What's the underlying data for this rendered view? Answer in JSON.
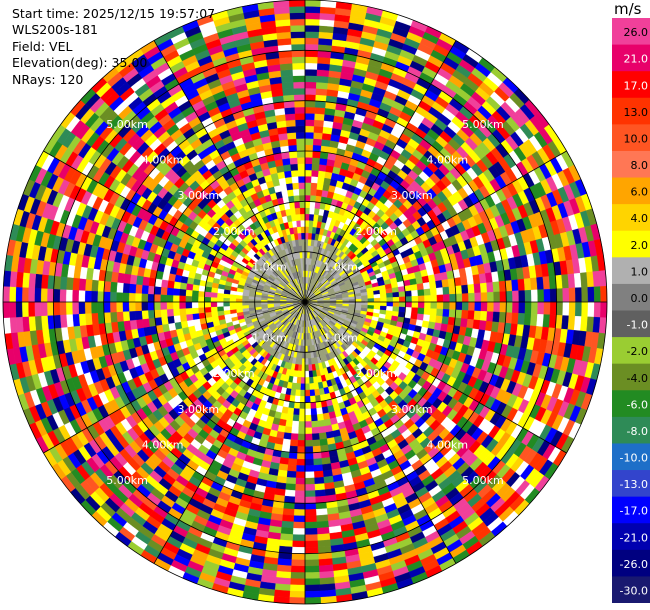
{
  "header": {
    "start_time": "Start time: 2025/12/15 19:57:07",
    "instrument": "WLS200s-181",
    "field": "Field: VEL",
    "elevation": "Elevation(deg): 35.00",
    "nrays": "NRays: 120"
  },
  "colorbar": {
    "unit": "m/s",
    "levels": [
      {
        "label": "26.0",
        "color": "#f0409a"
      },
      {
        "label": "21.0",
        "color": "#e8006a"
      },
      {
        "label": "17.0",
        "color": "#ff0000"
      },
      {
        "label": "13.0",
        "color": "#ff3300"
      },
      {
        "label": "10.0",
        "color": "#ff5522"
      },
      {
        "label": "8.0",
        "color": "#ff7755"
      },
      {
        "label": "6.0",
        "color": "#ffa500"
      },
      {
        "label": "4.0",
        "color": "#ffd400"
      },
      {
        "label": "2.0",
        "color": "#ffff00"
      },
      {
        "label": "1.0",
        "color": "#b0b0b0"
      },
      {
        "label": "0.0",
        "color": "#808080"
      },
      {
        "label": "-1.0",
        "color": "#606060"
      },
      {
        "label": "-2.0",
        "color": "#9acd32"
      },
      {
        "label": "-4.0",
        "color": "#6b8e23"
      },
      {
        "label": "-6.0",
        "color": "#228b22"
      },
      {
        "label": "-8.0",
        "color": "#2e8b57"
      },
      {
        "label": "-10.0",
        "color": "#1e6fc8"
      },
      {
        "label": "-13.0",
        "color": "#3344cc"
      },
      {
        "label": "-17.0",
        "color": "#0000ff"
      },
      {
        "label": "-21.0",
        "color": "#0000b0"
      },
      {
        "label": "-26.0",
        "color": "#000080"
      },
      {
        "label": "-30.0",
        "color": "#191970"
      }
    ]
  },
  "chart_data": {
    "type": "heatmap",
    "field": "VEL",
    "nrays": 120,
    "ring_labels": [
      "1.0km",
      "2.00km",
      "3.00km",
      "4.00km",
      "5.00km",
      "1.0km",
      "2.00km",
      "3.00km",
      "4.00km",
      "5.00km",
      "1.0km",
      "2.00km",
      "3.00km",
      "4.00km",
      "5.00km",
      "1.0km",
      "2.00km",
      "3.00km",
      "4.00km",
      "5.00km"
    ],
    "max_range_km": 6.0
  }
}
